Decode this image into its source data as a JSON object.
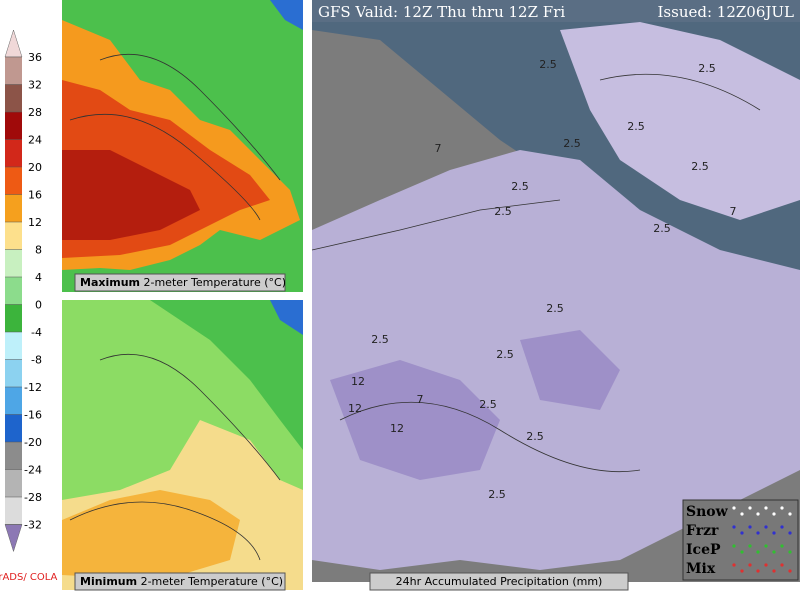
{
  "header": {
    "valid": "GFS Valid: 12Z Thu thru 12Z Fri",
    "issued": "Issued: 12Z06JUL"
  },
  "colorbar": {
    "ticks": [
      36,
      32,
      28,
      24,
      20,
      16,
      12,
      8,
      4,
      0,
      -4,
      -8,
      -12,
      -16,
      -20,
      -24,
      -28,
      -32
    ],
    "colors": [
      "#f0d8d8",
      "#c09890",
      "#8c5448",
      "#a00a0a",
      "#d2281a",
      "#ee5a14",
      "#f5a01e",
      "#fde08c",
      "#c8f0c0",
      "#8cdc8c",
      "#3cb43c",
      "#bef0fa",
      "#8cd2f0",
      "#4ea6e6",
      "#1e64cc",
      "#8c8c8c",
      "#b4b4b4",
      "#dcdcdc",
      "#d2c8e6",
      "#8c78b4"
    ]
  },
  "panels": {
    "max_bold": "Maximum",
    "max_rest": "2-meter Temperature (°C)",
    "min_bold": "Minimum",
    "min_rest": "2-meter Temperature (°C)",
    "precip": "24hr Accumulated Precipitation (mm)"
  },
  "legend": [
    "Snow",
    "Frzr",
    "IceP",
    "Mix"
  ],
  "credit": "GrADS/ COLA",
  "contour_labels": [
    "2.5",
    "2.5",
    "2.5",
    "2.5",
    "7",
    "2.5",
    "2.5",
    "7",
    "2.5",
    "2.5",
    "2.5",
    "12",
    "12",
    "12",
    "7",
    "2.5",
    "2.5",
    "2.5",
    "2.5",
    "2.5"
  ]
}
